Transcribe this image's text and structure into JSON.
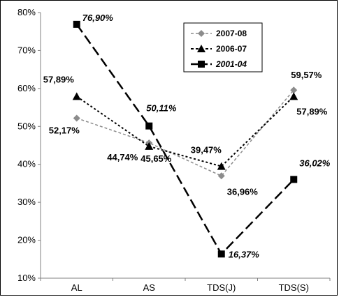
{
  "chart_data": {
    "type": "line",
    "categories": [
      "AL",
      "AS",
      "TDS(J)",
      "TDS(S)"
    ],
    "y_ticks": [
      "10%",
      "20%",
      "30%",
      "40%",
      "50%",
      "60%",
      "70%",
      "80%"
    ],
    "ylim": [
      10,
      80
    ],
    "grid": false,
    "legend_position": "top-right",
    "series": [
      {
        "name": "2007-08",
        "values": [
          52.17,
          45.65,
          36.96,
          59.57
        ],
        "labels": [
          "52,17%",
          "45,65%",
          "36,96%",
          "59,57%"
        ],
        "color": "#8c8c8c",
        "marker": "diamond",
        "dash": "4,3"
      },
      {
        "name": "2006-07",
        "values": [
          57.89,
          44.74,
          39.47,
          57.89
        ],
        "labels": [
          "57,89%",
          "44,74%",
          "39,47%",
          "57,89%"
        ],
        "color": "#000000",
        "marker": "triangle",
        "dash": "3,3"
      },
      {
        "name": "2001-04",
        "values": [
          76.9,
          50.11,
          16.37,
          36.02
        ],
        "labels": [
          "76,90%",
          "50,11%",
          "16,37%",
          "36,02%"
        ],
        "color": "#000000",
        "marker": "square",
        "dash": "14,6",
        "label_style": "italic"
      }
    ]
  }
}
